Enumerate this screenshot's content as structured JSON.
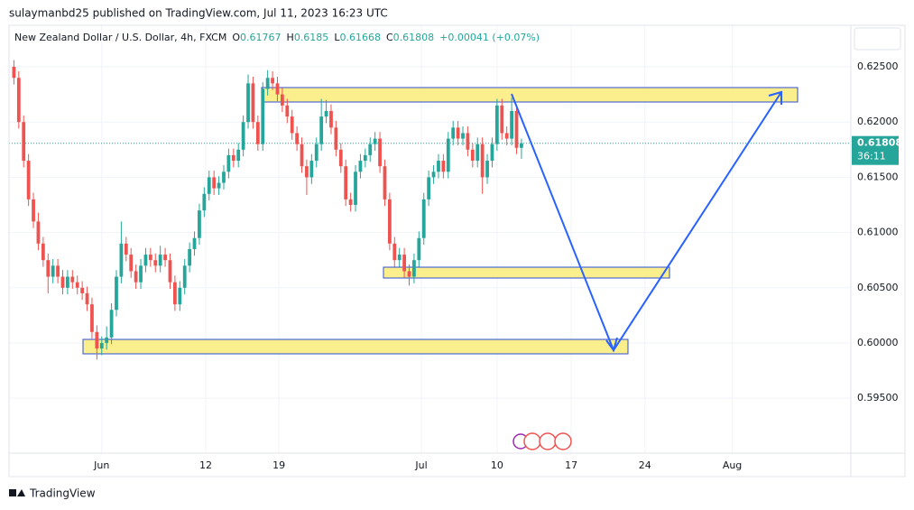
{
  "publisher_line": "sulaymanbd25 published on TradingView.com, Jul 11, 2023 16:23 UTC",
  "brand": "TradingView",
  "chart_data": {
    "type": "candlestick",
    "title": "New Zealand Dollar / U.S. Dollar, 4h, FXCM",
    "ohlc_labels": [
      "O",
      "H",
      "L",
      "C"
    ],
    "change": "+0.00041 (+0.07%)",
    "countdown": "36:11",
    "up_color": "#26a69a",
    "down_color": "#ef5350",
    "grid": true,
    "ylim": [
      0.59003,
      0.62876
    ],
    "yticks": [
      {
        "value": 0.595,
        "label": "0.59500"
      },
      {
        "value": 0.6,
        "label": "0.60000"
      },
      {
        "value": 0.605,
        "label": "0.60500"
      },
      {
        "value": 0.61,
        "label": "0.61000"
      },
      {
        "value": 0.615,
        "label": "0.61500"
      },
      {
        "value": 0.62,
        "label": "0.62000"
      },
      {
        "value": 0.625,
        "label": "0.62500"
      }
    ],
    "xlim": [
      -1,
      171.5
    ],
    "xticks": [
      {
        "value": 18,
        "label": "Jun"
      },
      {
        "value": 39.3,
        "label": "12"
      },
      {
        "value": 54.3,
        "label": "19"
      },
      {
        "value": 83.5,
        "label": "Jul"
      },
      {
        "value": 99,
        "label": "10"
      },
      {
        "value": 114.2,
        "label": "17"
      },
      {
        "value": 129.3,
        "label": "24"
      },
      {
        "value": 147.2,
        "label": "Aug"
      }
    ],
    "ohlc": [
      [
        0.625,
        0.6256,
        0.6234,
        0.624
      ],
      [
        0.624,
        0.6246,
        0.6194,
        0.62
      ],
      [
        0.62,
        0.6206,
        0.6159,
        0.6165
      ],
      [
        0.6165,
        0.6171,
        0.6124,
        0.613
      ],
      [
        0.613,
        0.6136,
        0.6104,
        0.611
      ],
      [
        0.611,
        0.6118,
        0.6084,
        0.609
      ],
      [
        0.609,
        0.6096,
        0.6069,
        0.6075
      ],
      [
        0.6075,
        0.6081,
        0.6045,
        0.606
      ],
      [
        0.606,
        0.6076,
        0.6054,
        0.607
      ],
      [
        0.607,
        0.6076,
        0.6054,
        0.606
      ],
      [
        0.606,
        0.6066,
        0.6044,
        0.605
      ],
      [
        0.605,
        0.6066,
        0.6044,
        0.606
      ],
      [
        0.606,
        0.6066,
        0.6049,
        0.6055
      ],
      [
        0.6055,
        0.6061,
        0.6044,
        0.605
      ],
      [
        0.605,
        0.6056,
        0.6039,
        0.6045
      ],
      [
        0.6045,
        0.6051,
        0.6029,
        0.6035
      ],
      [
        0.6035,
        0.6041,
        0.6004,
        0.601
      ],
      [
        0.601,
        0.6016,
        0.5985,
        0.5995
      ],
      [
        0.5995,
        0.6006,
        0.5989,
        0.6
      ],
      [
        0.6,
        0.6015,
        0.5994,
        0.6005
      ],
      [
        0.6005,
        0.6036,
        0.5999,
        0.603
      ],
      [
        0.603,
        0.6066,
        0.6024,
        0.606
      ],
      [
        0.606,
        0.611,
        0.6054,
        0.609
      ],
      [
        0.609,
        0.6096,
        0.6074,
        0.608
      ],
      [
        0.608,
        0.6086,
        0.6059,
        0.6065
      ],
      [
        0.6065,
        0.6071,
        0.6049,
        0.6055
      ],
      [
        0.6055,
        0.6076,
        0.6049,
        0.607
      ],
      [
        0.607,
        0.6086,
        0.6064,
        0.608
      ],
      [
        0.608,
        0.6086,
        0.6069,
        0.6075
      ],
      [
        0.6075,
        0.6081,
        0.6064,
        0.607
      ],
      [
        0.607,
        0.6088,
        0.6064,
        0.608
      ],
      [
        0.608,
        0.6086,
        0.6069,
        0.6075
      ],
      [
        0.6075,
        0.6081,
        0.6049,
        0.6055
      ],
      [
        0.6055,
        0.6061,
        0.6029,
        0.6035
      ],
      [
        0.6035,
        0.6056,
        0.6029,
        0.605
      ],
      [
        0.605,
        0.6076,
        0.6044,
        0.607
      ],
      [
        0.607,
        0.6091,
        0.6064,
        0.6085
      ],
      [
        0.6085,
        0.6101,
        0.6079,
        0.6095
      ],
      [
        0.6095,
        0.6126,
        0.6089,
        0.612
      ],
      [
        0.612,
        0.6141,
        0.6114,
        0.6135
      ],
      [
        0.6135,
        0.6156,
        0.6129,
        0.615
      ],
      [
        0.615,
        0.6156,
        0.6134,
        0.614
      ],
      [
        0.614,
        0.6151,
        0.6134,
        0.6145
      ],
      [
        0.6145,
        0.6161,
        0.6139,
        0.6155
      ],
      [
        0.6155,
        0.6176,
        0.6149,
        0.617
      ],
      [
        0.617,
        0.6176,
        0.6159,
        0.6165
      ],
      [
        0.6165,
        0.6181,
        0.6159,
        0.6175
      ],
      [
        0.6175,
        0.6206,
        0.6169,
        0.62
      ],
      [
        0.62,
        0.6243,
        0.6194,
        0.6235
      ],
      [
        0.6235,
        0.6241,
        0.6194,
        0.62
      ],
      [
        0.62,
        0.6206,
        0.6174,
        0.618
      ],
      [
        0.618,
        0.6236,
        0.6174,
        0.623
      ],
      [
        0.623,
        0.6247,
        0.6224,
        0.624
      ],
      [
        0.624,
        0.6246,
        0.6229,
        0.6235
      ],
      [
        0.6235,
        0.6241,
        0.6219,
        0.6225
      ],
      [
        0.6225,
        0.6231,
        0.6209,
        0.6215
      ],
      [
        0.6215,
        0.6221,
        0.6199,
        0.6205
      ],
      [
        0.6205,
        0.6211,
        0.6184,
        0.619
      ],
      [
        0.619,
        0.6196,
        0.6174,
        0.618
      ],
      [
        0.618,
        0.6186,
        0.6154,
        0.616
      ],
      [
        0.616,
        0.6166,
        0.6134,
        0.615
      ],
      [
        0.615,
        0.6171,
        0.6144,
        0.6165
      ],
      [
        0.6165,
        0.6186,
        0.6159,
        0.618
      ],
      [
        0.618,
        0.6221,
        0.6174,
        0.6205
      ],
      [
        0.6205,
        0.622,
        0.6199,
        0.621
      ],
      [
        0.621,
        0.6216,
        0.6189,
        0.6195
      ],
      [
        0.6195,
        0.6201,
        0.6169,
        0.6175
      ],
      [
        0.6175,
        0.6181,
        0.6154,
        0.616
      ],
      [
        0.616,
        0.6166,
        0.6124,
        0.613
      ],
      [
        0.613,
        0.6136,
        0.6119,
        0.6125
      ],
      [
        0.6125,
        0.6161,
        0.6119,
        0.6155
      ],
      [
        0.6155,
        0.6171,
        0.6149,
        0.6165
      ],
      [
        0.6165,
        0.6176,
        0.6159,
        0.617
      ],
      [
        0.617,
        0.6186,
        0.6164,
        0.618
      ],
      [
        0.618,
        0.6191,
        0.6174,
        0.6185
      ],
      [
        0.6185,
        0.6191,
        0.6154,
        0.616
      ],
      [
        0.616,
        0.6166,
        0.6124,
        0.613
      ],
      [
        0.613,
        0.6136,
        0.6084,
        0.609
      ],
      [
        0.609,
        0.6096,
        0.6069,
        0.6075
      ],
      [
        0.6075,
        0.6086,
        0.6069,
        0.608
      ],
      [
        0.608,
        0.6086,
        0.6059,
        0.6065
      ],
      [
        0.6065,
        0.6071,
        0.6052,
        0.606
      ],
      [
        0.606,
        0.6081,
        0.6054,
        0.6075
      ],
      [
        0.6075,
        0.6101,
        0.6069,
        0.6095
      ],
      [
        0.6095,
        0.6136,
        0.6089,
        0.613
      ],
      [
        0.613,
        0.6156,
        0.6124,
        0.615
      ],
      [
        0.615,
        0.6161,
        0.6144,
        0.6155
      ],
      [
        0.6155,
        0.6171,
        0.6149,
        0.6165
      ],
      [
        0.6165,
        0.6171,
        0.6149,
        0.6155
      ],
      [
        0.6155,
        0.6191,
        0.6149,
        0.6185
      ],
      [
        0.6185,
        0.6201,
        0.6179,
        0.6195
      ],
      [
        0.6195,
        0.6201,
        0.6179,
        0.6185
      ],
      [
        0.6185,
        0.6196,
        0.6179,
        0.619
      ],
      [
        0.619,
        0.6196,
        0.6169,
        0.6175
      ],
      [
        0.6175,
        0.6181,
        0.6159,
        0.6165
      ],
      [
        0.6165,
        0.6186,
        0.6159,
        0.618
      ],
      [
        0.618,
        0.6186,
        0.6135,
        0.615
      ],
      [
        0.615,
        0.6171,
        0.6144,
        0.6165
      ],
      [
        0.6165,
        0.6186,
        0.6159,
        0.618
      ],
      [
        0.618,
        0.6221,
        0.6174,
        0.6215
      ],
      [
        0.6215,
        0.6221,
        0.6184,
        0.619
      ],
      [
        0.619,
        0.6196,
        0.6179,
        0.6185
      ],
      [
        0.6185,
        0.6222,
        0.6179,
        0.621
      ],
      [
        0.621,
        0.6216,
        0.6171,
        0.61767
      ],
      [
        0.61767,
        0.6185,
        0.61668,
        0.61808
      ]
    ]
  }
}
